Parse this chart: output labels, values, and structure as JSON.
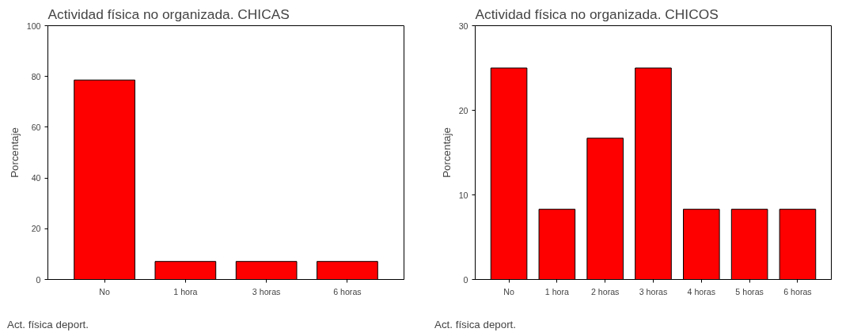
{
  "chart_data": [
    {
      "type": "bar",
      "title": "Actividad física no organizada. CHICAS",
      "xlabel": "Act. física deport.",
      "ylabel": "Porcentaje",
      "categories": [
        "No",
        "1 hora",
        "3 horas",
        "6 horas"
      ],
      "values": [
        78.6,
        7.1,
        7.1,
        7.1
      ],
      "color": "#ff0000",
      "ylim": [
        0,
        100
      ],
      "yticks": [
        0,
        20,
        40,
        60,
        80,
        100
      ],
      "grid": false,
      "legend": false
    },
    {
      "type": "bar",
      "title": "Actividad física no organizada. CHICOS",
      "xlabel": "Act. física deport.",
      "ylabel": "Porcentaje",
      "categories": [
        "No",
        "1 hora",
        "2 horas",
        "3 horas",
        "4 horas",
        "5 horas",
        "6 horas"
      ],
      "values": [
        25,
        8.3,
        16.7,
        25,
        8.3,
        8.3,
        8.3
      ],
      "color": "#ff0000",
      "ylim": [
        0,
        30
      ],
      "yticks": [
        0,
        10,
        20,
        30
      ],
      "grid": false,
      "legend": false
    }
  ]
}
